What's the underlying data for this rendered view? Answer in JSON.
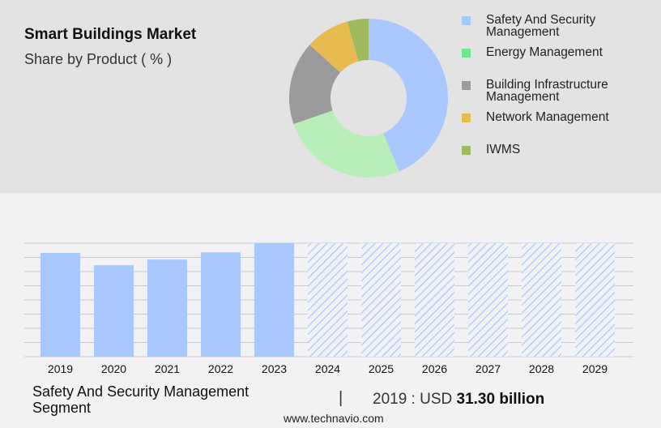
{
  "header": {
    "title": "Smart Buildings Market",
    "subtitle": "Share by Product ( % )"
  },
  "chart_data": [
    {
      "type": "pie",
      "donut": true,
      "categories": [
        "Safety And Security Management",
        "Energy Management",
        "Building Infrastructure Management",
        "Network Management",
        "IWMS"
      ],
      "values": [
        43.7,
        26,
        17,
        9,
        4.3
      ],
      "colors": [
        "#a8c8ff",
        "#b8eeb8",
        "#9b9b9b",
        "#e8bb50",
        "#9fbb60"
      ],
      "legend_colors": [
        "#a8c8ff",
        "#6ee88a",
        "#9b9b9b",
        "#e8bb50",
        "#9fbb60"
      ],
      "legend": "right"
    },
    {
      "type": "bar",
      "categories": [
        "2019",
        "2020",
        "2021",
        "2022",
        "2023",
        "2024",
        "2025",
        "2026",
        "2027",
        "2028",
        "2029"
      ],
      "values": [
        31.3,
        27.6,
        29.3,
        31.5,
        34.2,
        null,
        null,
        null,
        null,
        null,
        null
      ],
      "forecast": [
        "2024",
        "2025",
        "2026",
        "2027",
        "2028",
        "2029"
      ],
      "unit": "USD billion",
      "color": "#a8c8ff",
      "grid": true
    }
  ],
  "footer": {
    "segment": "Safety And Security Management Segment",
    "separator": "|",
    "value_prefix": "2019 : USD",
    "value_bold": "31.30 billion",
    "site": "www.technavio.com"
  }
}
